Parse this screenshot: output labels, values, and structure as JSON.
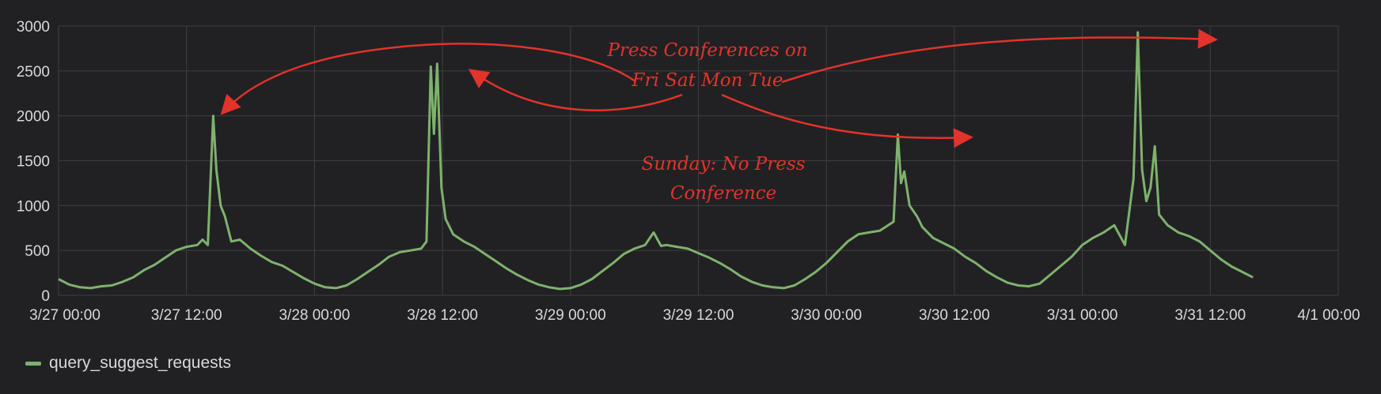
{
  "chart_data": {
    "type": "line",
    "title": "",
    "xlabel": "",
    "ylabel": "",
    "ylim": [
      0,
      3000
    ],
    "yticks": [
      "0",
      "500",
      "1000",
      "1500",
      "2000",
      "2500",
      "3000"
    ],
    "xticks": [
      "3/27 00:00",
      "3/27 12:00",
      "3/28 00:00",
      "3/28 12:00",
      "3/29 00:00",
      "3/29 12:00",
      "3/30 00:00",
      "3/30 12:00",
      "3/31 00:00",
      "3/31 12:00",
      "4/1 00:00"
    ],
    "x_unit": "hours since 3/27 00:00",
    "grid": true,
    "legend_position": "bottom-left",
    "series": [
      {
        "name": "query_suggest_requests",
        "color": "#7eb26d",
        "points": [
          [
            0,
            180
          ],
          [
            1,
            120
          ],
          [
            2,
            90
          ],
          [
            3,
            80
          ],
          [
            4,
            100
          ],
          [
            5,
            110
          ],
          [
            6,
            150
          ],
          [
            7,
            200
          ],
          [
            8,
            280
          ],
          [
            9,
            340
          ],
          [
            10,
            420
          ],
          [
            11,
            500
          ],
          [
            12,
            540
          ],
          [
            13,
            560
          ],
          [
            13.5,
            620
          ],
          [
            14,
            560
          ],
          [
            14.5,
            2000
          ],
          [
            14.8,
            1400
          ],
          [
            15.2,
            1000
          ],
          [
            15.6,
            880
          ],
          [
            16.2,
            600
          ],
          [
            17,
            620
          ],
          [
            18,
            520
          ],
          [
            19,
            440
          ],
          [
            20,
            370
          ],
          [
            21,
            330
          ],
          [
            22,
            260
          ],
          [
            23,
            190
          ],
          [
            24,
            130
          ],
          [
            25,
            90
          ],
          [
            26,
            80
          ],
          [
            27,
            110
          ],
          [
            28,
            180
          ],
          [
            29,
            260
          ],
          [
            30,
            340
          ],
          [
            31,
            430
          ],
          [
            32,
            480
          ],
          [
            33,
            500
          ],
          [
            34,
            520
          ],
          [
            34.5,
            600
          ],
          [
            34.9,
            2550
          ],
          [
            35.2,
            1800
          ],
          [
            35.5,
            2580
          ],
          [
            35.9,
            1200
          ],
          [
            36.3,
            850
          ],
          [
            37,
            680
          ],
          [
            38,
            600
          ],
          [
            39,
            540
          ],
          [
            40,
            460
          ],
          [
            41,
            380
          ],
          [
            42,
            300
          ],
          [
            43,
            230
          ],
          [
            44,
            170
          ],
          [
            45,
            120
          ],
          [
            46,
            90
          ],
          [
            47,
            70
          ],
          [
            48,
            80
          ],
          [
            49,
            120
          ],
          [
            50,
            180
          ],
          [
            51,
            270
          ],
          [
            52,
            360
          ],
          [
            53,
            460
          ],
          [
            54,
            520
          ],
          [
            55,
            560
          ],
          [
            55.8,
            700
          ],
          [
            56.5,
            550
          ],
          [
            57,
            560
          ],
          [
            58,
            540
          ],
          [
            59,
            520
          ],
          [
            60,
            470
          ],
          [
            61,
            420
          ],
          [
            62,
            360
          ],
          [
            63,
            290
          ],
          [
            64,
            210
          ],
          [
            65,
            150
          ],
          [
            66,
            110
          ],
          [
            67,
            90
          ],
          [
            68,
            80
          ],
          [
            69,
            110
          ],
          [
            70,
            180
          ],
          [
            71,
            260
          ],
          [
            72,
            360
          ],
          [
            73,
            480
          ],
          [
            74,
            600
          ],
          [
            75,
            680
          ],
          [
            76,
            700
          ],
          [
            77,
            720
          ],
          [
            78.3,
            820
          ],
          [
            78.7,
            1790
          ],
          [
            79,
            1250
          ],
          [
            79.3,
            1380
          ],
          [
            79.8,
            1000
          ],
          [
            80.5,
            880
          ],
          [
            81,
            760
          ],
          [
            82,
            640
          ],
          [
            83,
            580
          ],
          [
            84,
            520
          ],
          [
            85,
            430
          ],
          [
            86,
            360
          ],
          [
            87,
            270
          ],
          [
            88,
            200
          ],
          [
            89,
            140
          ],
          [
            90,
            110
          ],
          [
            91,
            100
          ],
          [
            92,
            130
          ],
          [
            93,
            230
          ],
          [
            94,
            330
          ],
          [
            95,
            430
          ],
          [
            96,
            560
          ],
          [
            97,
            640
          ],
          [
            98,
            700
          ],
          [
            99,
            780
          ],
          [
            100,
            560
          ],
          [
            100.8,
            1300
          ],
          [
            101.2,
            2930
          ],
          [
            101.6,
            1400
          ],
          [
            102,
            1050
          ],
          [
            102.4,
            1200
          ],
          [
            102.8,
            1660
          ],
          [
            103.2,
            900
          ],
          [
            104,
            780
          ],
          [
            105,
            700
          ],
          [
            106,
            660
          ],
          [
            107,
            600
          ],
          [
            108,
            500
          ],
          [
            109,
            400
          ],
          [
            110,
            320
          ],
          [
            111,
            260
          ],
          [
            112,
            200
          ]
        ]
      }
    ],
    "annotations": {
      "press_line1": "Press Conferences on",
      "press_line2": "Fri Sat Mon Tue",
      "sunday_line1": "Sunday: No Press",
      "sunday_line2": "Conference"
    }
  }
}
